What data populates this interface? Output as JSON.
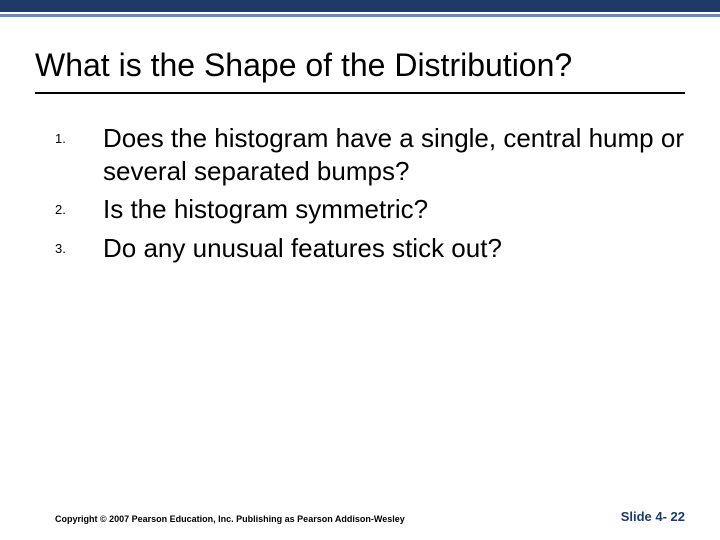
{
  "colors": {
    "bar_dark": "#1f3a68",
    "bar_light": "#6a89b8",
    "slide_num": "#1f3a68"
  },
  "title": "What is the Shape of the Distribution?",
  "items": [
    {
      "num": "1.",
      "text": "Does the histogram have a single, central hump or several separated bumps?"
    },
    {
      "num": "2.",
      "text": "Is the histogram symmetric?"
    },
    {
      "num": "3.",
      "text": "Do any unusual features stick out?"
    }
  ],
  "copyright": "Copyright © 2007 Pearson Education, Inc. Publishing as Pearson Addison-Wesley",
  "slide_number": "Slide 4- 22"
}
